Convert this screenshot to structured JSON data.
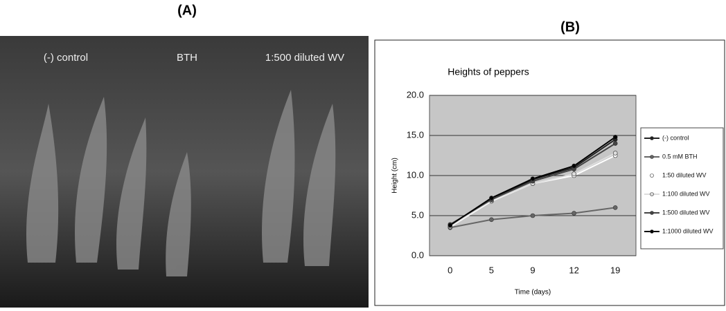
{
  "panel_a": {
    "label": "(A)",
    "captions": [
      "(-) control",
      "BTH",
      "1:500 diluted WV"
    ]
  },
  "panel_b": {
    "label": "(B)"
  },
  "chart_data": {
    "type": "line",
    "title": "Heights of peppers",
    "x_label": "Time (days)",
    "y_label": "Height (cm)",
    "categories": [
      "0",
      "5",
      "9",
      "12",
      "19"
    ],
    "series": [
      {
        "name": "(-) control",
        "color": "#222222",
        "values": [
          3.8,
          7.0,
          9.5,
          11.0,
          14.5
        ]
      },
      {
        "name": "0.5 mM BTH",
        "color": "#666666",
        "values": [
          3.5,
          4.5,
          5.0,
          5.3,
          6.0
        ]
      },
      {
        "name": "1:50 diluted WV",
        "color": "#ffffff",
        "values": [
          3.6,
          6.8,
          9.0,
          10.0,
          12.5
        ]
      },
      {
        "name": "1:100 diluted WV",
        "color": "#dddddd",
        "values": [
          3.7,
          6.9,
          9.0,
          10.2,
          12.8
        ]
      },
      {
        "name": "1:500 diluted WV",
        "color": "#444444",
        "values": [
          3.9,
          7.0,
          9.3,
          10.8,
          14.0
        ]
      },
      {
        "name": "1:1000 diluted WV",
        "color": "#000000",
        "values": [
          3.8,
          7.2,
          9.6,
          11.2,
          14.8
        ]
      }
    ],
    "ylim": [
      0,
      20
    ],
    "yticks": [
      {
        "value": 0,
        "label": "0.0"
      },
      {
        "value": 5,
        "label": "5.0"
      },
      {
        "value": 10,
        "label": "10.0"
      },
      {
        "value": 15,
        "label": "15.0"
      },
      {
        "value": 20,
        "label": "20.0"
      }
    ],
    "grid": true
  }
}
